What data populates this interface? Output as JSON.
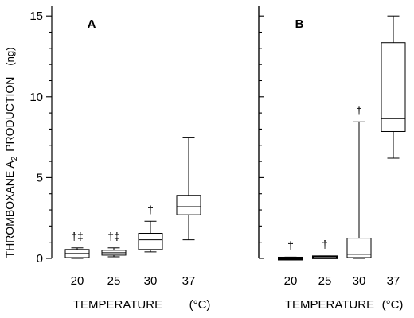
{
  "chart_data": {
    "type": "box",
    "ylabel": "THROMBOXANE A",
    "ylabel_sub": "2",
    "ylabel_tail": "PRODUCTION",
    "yunit": "(ng)",
    "ylim": [
      0,
      15.6
    ],
    "yticks": [
      0,
      5,
      10,
      15
    ],
    "grid": false,
    "panels": [
      {
        "label": "A",
        "xlabel": "TEMPERATURE",
        "xunit": "(°C)",
        "categories": [
          "20",
          "25",
          "30",
          "37"
        ],
        "boxes": [
          {
            "whisker_low": 0.0,
            "q1": 0.05,
            "median": 0.3,
            "q3": 0.55,
            "whisker_high": 0.65
          },
          {
            "whisker_low": 0.1,
            "q1": 0.2,
            "median": 0.35,
            "q3": 0.5,
            "whisker_high": 0.65
          },
          {
            "whisker_low": 0.4,
            "q1": 0.55,
            "median": 1.15,
            "q3": 1.55,
            "whisker_high": 2.3
          },
          {
            "whisker_low": 1.15,
            "q1": 2.7,
            "median": 3.2,
            "q3": 3.9,
            "whisker_high": 7.5
          }
        ],
        "annotations": [
          "†‡",
          "†‡",
          "†",
          ""
        ]
      },
      {
        "label": "B",
        "xlabel": "TEMPERATURE",
        "xunit": "(°C)",
        "categories": [
          "20",
          "25",
          "30",
          "37"
        ],
        "boxes": [
          {
            "whisker_low": -0.08,
            "q1": -0.05,
            "median": 0.0,
            "q3": 0.05,
            "whisker_high": 0.08
          },
          {
            "whisker_low": 0.05,
            "q1": 0.07,
            "median": 0.1,
            "q3": 0.13,
            "whisker_high": 0.15
          },
          {
            "whisker_low": 0.0,
            "q1": 0.05,
            "median": 0.25,
            "q3": 1.25,
            "whisker_high": 8.45
          },
          {
            "whisker_low": 6.2,
            "q1": 7.85,
            "median": 8.65,
            "q3": 13.35,
            "whisker_high": 15.0
          }
        ],
        "annotations": [
          "†",
          "†",
          "†",
          ""
        ]
      }
    ]
  }
}
